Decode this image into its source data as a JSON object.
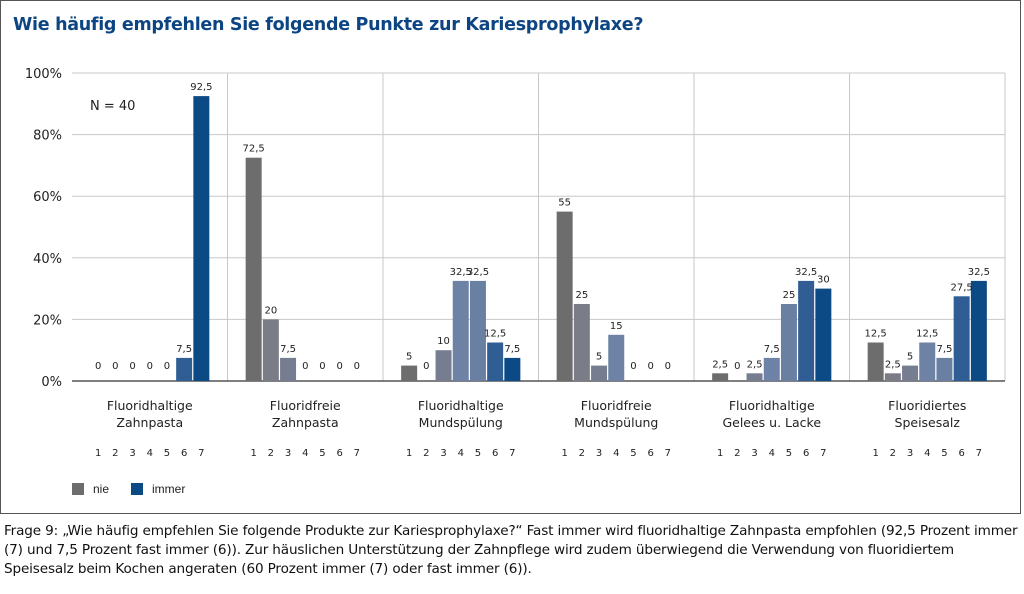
{
  "title": "Wie häufig empfehlen Sie folgende Punkte zur Kariesprophylaxe?",
  "caption": "Frage 9: „Wie häufig empfehlen Sie folgende Produkte zur Kariesprophylaxe?“ Fast immer wird fluoridhaltige Zahnpasta empfohlen (92,5 Prozent immer (7) und 7,5 Prozent fast immer (6)). Zur häuslichen Unterstützung der Zahnpflege wird zudem überwiegend die Verwendung von fluoridiertem Speisesalz beim Kochen angeraten (60 Prozent immer (7) oder fast immer (6)).",
  "legend": [
    {
      "label": "nie",
      "color": "#6d6d6d"
    },
    {
      "label": "immer",
      "color": "#0c4a86"
    }
  ],
  "chart_data": {
    "type": "bar",
    "title": "Wie häufig empfehlen Sie folgende Punkte zur Kariesprophylaxe?",
    "annotation": "N = 40",
    "xlabel": "",
    "ylabel": "",
    "ylim": [
      0,
      100
    ],
    "yticks": [
      "0%",
      "20%",
      "40%",
      "60%",
      "80%",
      "100%"
    ],
    "ytick_values": [
      0,
      20,
      40,
      60,
      80,
      100
    ],
    "grid": true,
    "legend_position": "bottom-left",
    "scale_labels": [
      "1",
      "2",
      "3",
      "4",
      "5",
      "6",
      "7"
    ],
    "scale_colors": [
      "#6d6d6d",
      "#7a7c88",
      "#777d90",
      "#6d82a4",
      "#6a80a3",
      "#2f5d94",
      "#0c4a86"
    ],
    "groups": [
      {
        "name": [
          "Fluoridhaltige",
          "Zahnpasta"
        ],
        "values": [
          0,
          0,
          0,
          0,
          0,
          7.5,
          92.5
        ],
        "labels": [
          "0",
          "0",
          "0",
          "0",
          "0",
          "7,5",
          "92,5"
        ]
      },
      {
        "name": [
          "Fluoridfreie",
          "Zahnpasta"
        ],
        "values": [
          72.5,
          20,
          7.5,
          0,
          0,
          0,
          0
        ],
        "labels": [
          "72,5",
          "20",
          "7,5",
          "0",
          "0",
          "0",
          "0"
        ]
      },
      {
        "name": [
          "Fluoridhaltige",
          "Mundspülung"
        ],
        "values": [
          5,
          0,
          10,
          32.5,
          32.5,
          12.5,
          7.5
        ],
        "labels": [
          "5",
          "0",
          "10",
          "32,5",
          "32,5",
          "12,5",
          "7,5"
        ]
      },
      {
        "name": [
          "Fluoridfreie",
          "Mundspülung"
        ],
        "values": [
          55,
          25,
          5,
          15,
          0,
          0,
          0
        ],
        "labels": [
          "55",
          "25",
          "5",
          "15",
          "0",
          "0",
          "0"
        ]
      },
      {
        "name": [
          "Fluoridhaltige",
          "Gelees u. Lacke"
        ],
        "values": [
          2.5,
          0,
          2.5,
          7.5,
          25,
          32.5,
          30
        ],
        "labels": [
          "2,5",
          "0",
          "2,5",
          "7,5",
          "25",
          "32,5",
          "30"
        ]
      },
      {
        "name": [
          "Fluoridiertes",
          "Speisesalz"
        ],
        "values": [
          12.5,
          2.5,
          5,
          12.5,
          7.5,
          27.5,
          32.5
        ],
        "labels": [
          "12,5",
          "2,5",
          "5",
          "12,5",
          "7,5",
          "27,5",
          "32,5"
        ]
      }
    ]
  }
}
